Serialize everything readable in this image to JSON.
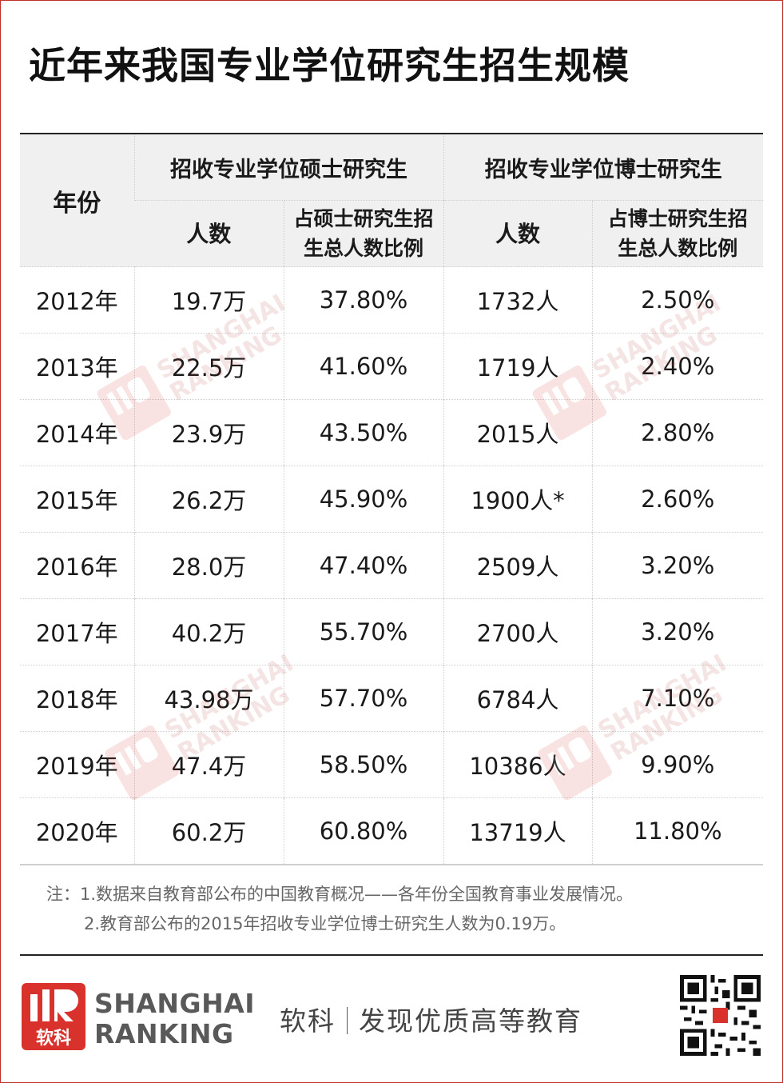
{
  "title": "近年来我国专业学位研究生招生规模",
  "table": {
    "header_year": "年份",
    "group_master": "招收专业学位硕士研究生",
    "group_doctor": "招收专业学位博士研究生",
    "sub_count": "人数",
    "sub_master_ratio": [
      "占硕士研究生招",
      "生总人数比例"
    ],
    "sub_doctor_ratio": [
      "占博士研究生招",
      "生总人数比例"
    ],
    "rows": [
      {
        "year": "2012年",
        "master_count": "19.7万",
        "master_ratio": "37.80%",
        "doctor_count": "1732人",
        "doctor_ratio": "2.50%"
      },
      {
        "year": "2013年",
        "master_count": "22.5万",
        "master_ratio": "41.60%",
        "doctor_count": "1719人",
        "doctor_ratio": "2.40%"
      },
      {
        "year": "2014年",
        "master_count": "23.9万",
        "master_ratio": "43.50%",
        "doctor_count": "2015人",
        "doctor_ratio": "2.80%"
      },
      {
        "year": "2015年",
        "master_count": "26.2万",
        "master_ratio": "45.90%",
        "doctor_count": "1900人*",
        "doctor_ratio": "2.60%"
      },
      {
        "year": "2016年",
        "master_count": "28.0万",
        "master_ratio": "47.40%",
        "doctor_count": "2509人",
        "doctor_ratio": "3.20%"
      },
      {
        "year": "2017年",
        "master_count": "40.2万",
        "master_ratio": "55.70%",
        "doctor_count": "2700人",
        "doctor_ratio": "3.20%"
      },
      {
        "year": "2018年",
        "master_count": "43.98万",
        "master_ratio": "57.70%",
        "doctor_count": "6784人",
        "doctor_ratio": "7.10%"
      },
      {
        "year": "2019年",
        "master_count": "47.4万",
        "master_ratio": "58.50%",
        "doctor_count": "10386人",
        "doctor_ratio": "9.90%"
      },
      {
        "year": "2020年",
        "master_count": "60.2万",
        "master_ratio": "60.80%",
        "doctor_count": "13719人",
        "doctor_ratio": "11.80%"
      }
    ]
  },
  "notes": [
    "注：1.数据来自教育部公布的中国教育概况——各年份全国教育事业发展情况。",
    "2.教育部公布的2015年招收专业学位博士研究生人数为0.19万。"
  ],
  "footer": {
    "logo_text": "软科",
    "brand_line1": "SHANGHAI",
    "brand_line2": "RANKING",
    "slogan_left": "软科",
    "slogan_right": "发现优质高等教育"
  },
  "watermark": {
    "mark_text": "软科",
    "line1": "SHANGHAI",
    "line2": "RANKING"
  },
  "colors": {
    "brand_red": "#d9322c",
    "header_bg": "#f0f0f0",
    "border": "#c0302a"
  }
}
